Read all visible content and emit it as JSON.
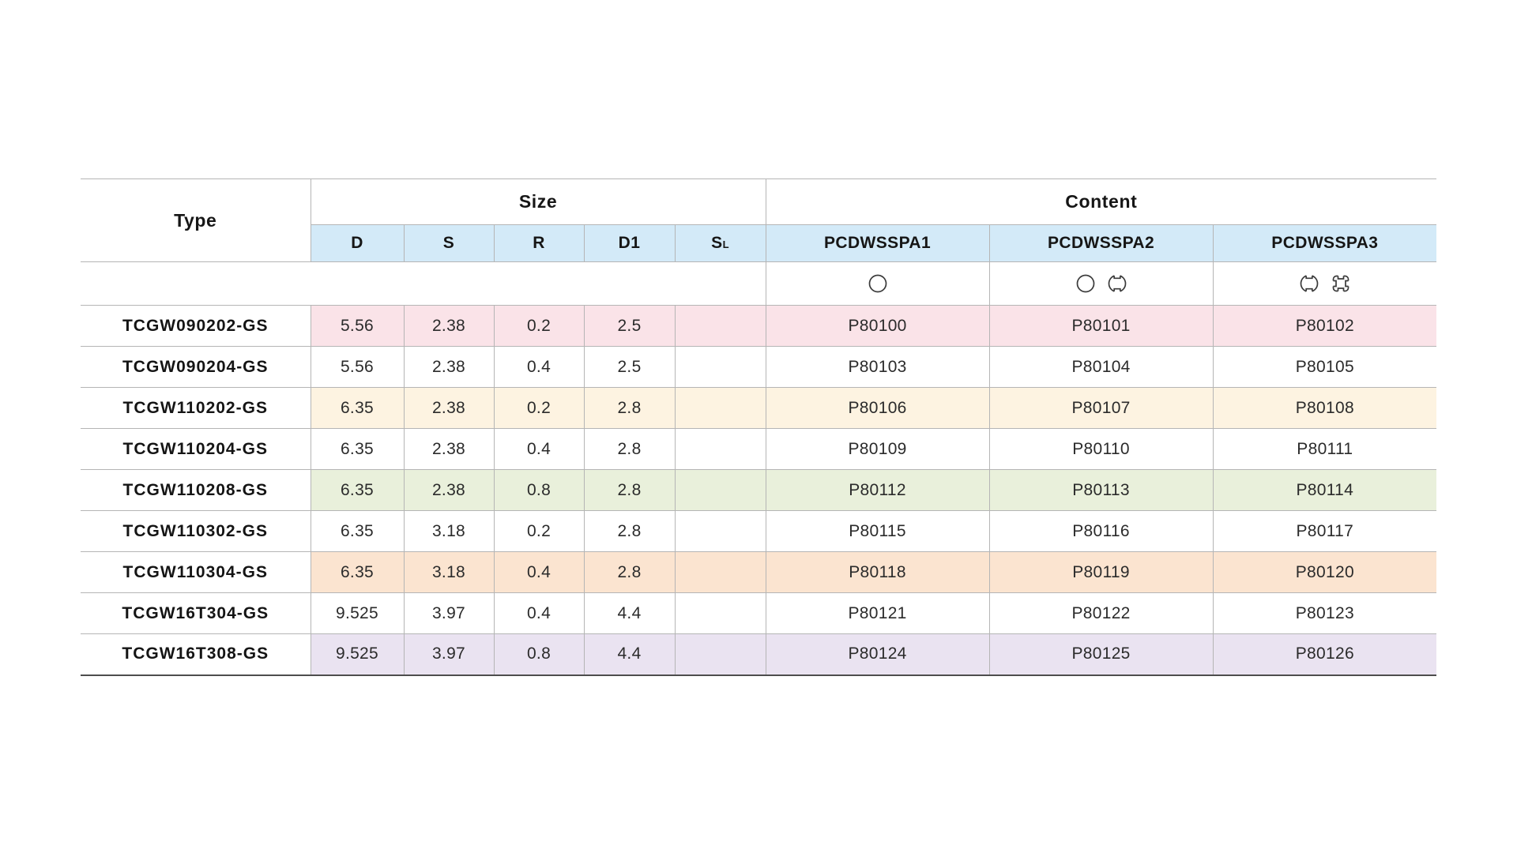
{
  "page": {
    "background": "#ffffff"
  },
  "table": {
    "colors": {
      "header_bg": "#d3eaf8",
      "border": "#b5b5b5",
      "bottom_border": "#4d4d4d"
    },
    "header": {
      "type_label": "Type",
      "size_label": "Size",
      "content_label": "Content",
      "size_columns": [
        {
          "t": "D"
        },
        {
          "t": "S"
        },
        {
          "t": "R"
        },
        {
          "t": "D1"
        },
        {
          "t": "S",
          "sub": "L"
        }
      ],
      "content_columns": [
        "PCDWSSPA1",
        "PCDWSSPA2",
        "PCDWSSPA3"
      ]
    },
    "symbols": [
      [
        "circle"
      ],
      [
        "circle",
        "interrupted-circle"
      ],
      [
        "interrupted-circle",
        "interrupted-square"
      ]
    ],
    "rows": [
      {
        "type": "TCGW090202-GS",
        "d": "5.56",
        "s": "2.38",
        "r": "0.2",
        "d1": "2.5",
        "sl": "",
        "pa1": "P80100",
        "pa2": "P80101",
        "pa3": "P80102",
        "bg": "#fae3e8"
      },
      {
        "type": "TCGW090204-GS",
        "d": "5.56",
        "s": "2.38",
        "r": "0.4",
        "d1": "2.5",
        "sl": "",
        "pa1": "P80103",
        "pa2": "P80104",
        "pa3": "P80105",
        "bg": "#ffffff"
      },
      {
        "type": "TCGW110202-GS",
        "d": "6.35",
        "s": "2.38",
        "r": "0.2",
        "d1": "2.8",
        "sl": "",
        "pa1": "P80106",
        "pa2": "P80107",
        "pa3": "P80108",
        "bg": "#fdf3e1"
      },
      {
        "type": "TCGW110204-GS",
        "d": "6.35",
        "s": "2.38",
        "r": "0.4",
        "d1": "2.8",
        "sl": "",
        "pa1": "P80109",
        "pa2": "P80110",
        "pa3": "P80111",
        "bg": "#ffffff"
      },
      {
        "type": "TCGW110208-GS",
        "d": "6.35",
        "s": "2.38",
        "r": "0.8",
        "d1": "2.8",
        "sl": "",
        "pa1": "P80112",
        "pa2": "P80113",
        "pa3": "P80114",
        "bg": "#e9f0db"
      },
      {
        "type": "TCGW110302-GS",
        "d": "6.35",
        "s": "3.18",
        "r": "0.2",
        "d1": "2.8",
        "sl": "",
        "pa1": "P80115",
        "pa2": "P80116",
        "pa3": "P80117",
        "bg": "#ffffff"
      },
      {
        "type": "TCGW110304-GS",
        "d": "6.35",
        "s": "3.18",
        "r": "0.4",
        "d1": "2.8",
        "sl": "",
        "pa1": "P80118",
        "pa2": "P80119",
        "pa3": "P80120",
        "bg": "#fbe4d0"
      },
      {
        "type": "TCGW16T304-GS",
        "d": "9.525",
        "s": "3.97",
        "r": "0.4",
        "d1": "4.4",
        "sl": "",
        "pa1": "P80121",
        "pa2": "P80122",
        "pa3": "P80123",
        "bg": "#ffffff"
      },
      {
        "type": "TCGW16T308-GS",
        "d": "9.525",
        "s": "3.97",
        "r": "0.8",
        "d1": "4.4",
        "sl": "",
        "pa1": "P80124",
        "pa2": "P80125",
        "pa3": "P80126",
        "bg": "#eae3f1"
      }
    ]
  }
}
